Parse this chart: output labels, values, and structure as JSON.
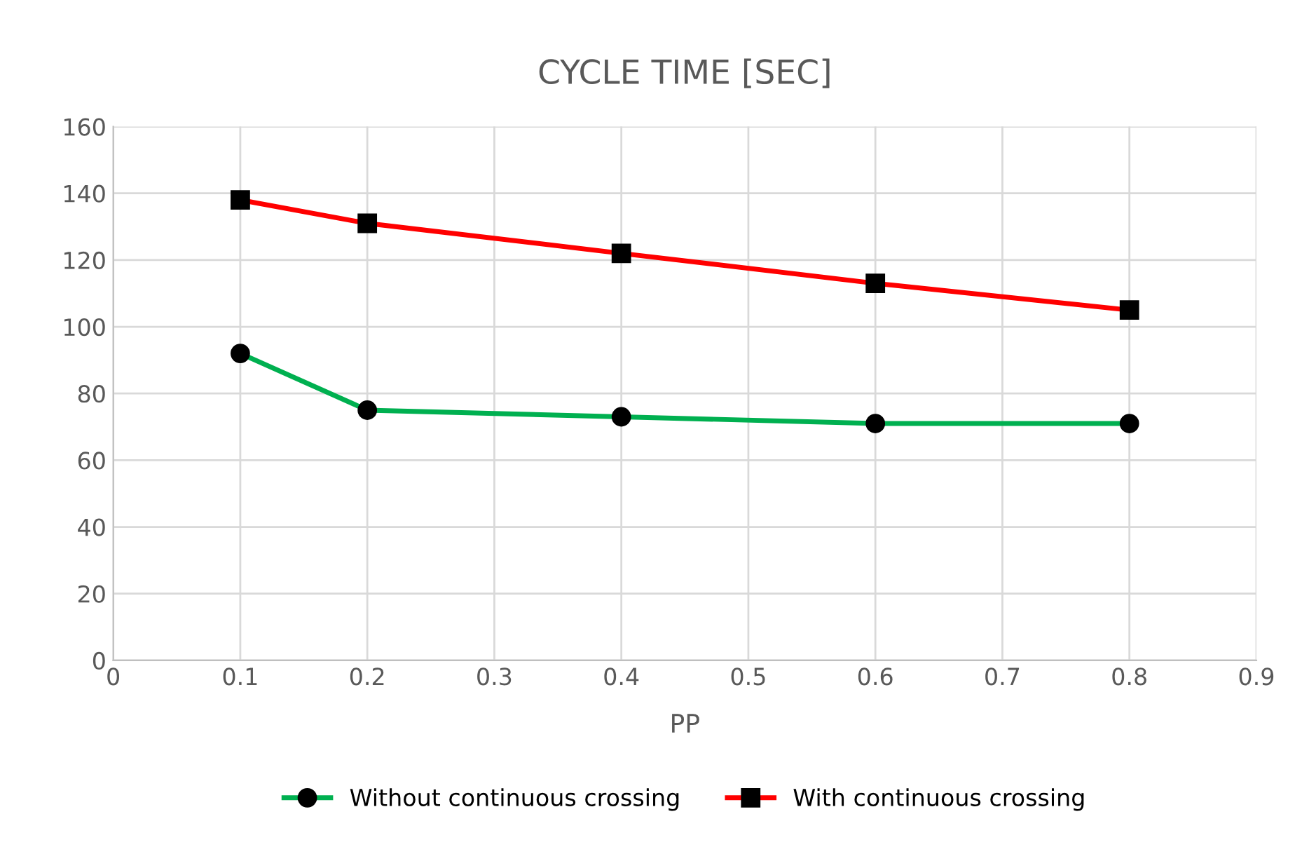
{
  "chart_data": {
    "type": "line",
    "title": "CYCLE TIME [SEC]",
    "xlabel": "PP",
    "x": [
      0.1,
      0.2,
      0.4,
      0.6,
      0.8
    ],
    "series": [
      {
        "name": "Without continuous crossing",
        "color": "#00b050",
        "marker": "circle",
        "values": [
          92,
          75,
          73,
          71,
          71
        ]
      },
      {
        "name": "With continuous crossing",
        "color": "#ff0000",
        "marker": "square",
        "values": [
          138,
          131,
          122,
          113,
          105
        ]
      }
    ],
    "xlim": [
      0,
      0.9
    ],
    "xticks": [
      0,
      0.1,
      0.2,
      0.3,
      0.4,
      0.5,
      0.6,
      0.7,
      0.8,
      0.9
    ],
    "ylim": [
      0,
      160
    ],
    "yticks": [
      0,
      20,
      40,
      60,
      80,
      100,
      120,
      140,
      160
    ],
    "grid": true,
    "legend": "bottom",
    "line_style": "solid"
  }
}
